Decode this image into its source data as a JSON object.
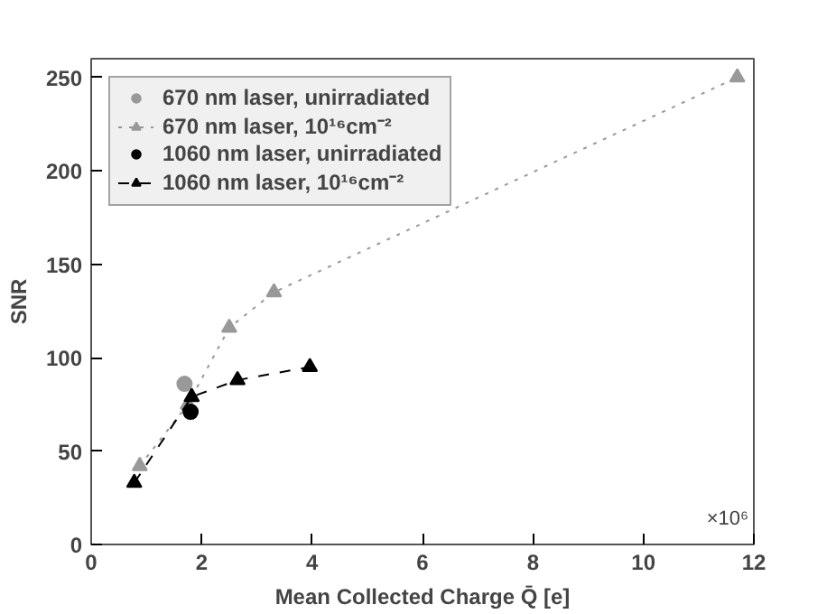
{
  "chart_data": {
    "type": "line",
    "xlabel": "Mean Collected Charge Q̄ [e]",
    "ylabel": "SNR",
    "xlim": [
      0,
      12
    ],
    "ylim": [
      0,
      260
    ],
    "xticks": [
      0,
      2,
      4,
      6,
      8,
      10,
      12
    ],
    "yticks": [
      0,
      50,
      100,
      150,
      200,
      250
    ],
    "annotations": [
      "×10⁶"
    ],
    "grid": false,
    "legend": "top left",
    "series": [
      {
        "name": "670 nm laser, unirradiated",
        "type": "scatter",
        "marker": "circle",
        "color": "#999999",
        "x": [
          1.69
        ],
        "values": [
          86
        ]
      },
      {
        "name": "670 nm laser, 10¹⁶cm⁻²",
        "marker": "triangle",
        "line_style": "dotted",
        "color": "#999999",
        "x": [
          0.88,
          1.75,
          2.5,
          3.31,
          11.7
        ],
        "values": [
          42,
          75,
          116,
          135,
          250
        ]
      },
      {
        "name": "1060 nm laser, unirradiated",
        "type": "scatter",
        "marker": "circle",
        "color": "#000000",
        "x": [
          1.8
        ],
        "values": [
          71
        ]
      },
      {
        "name": "1060 nm laser, 10¹⁶cm⁻²",
        "marker": "triangle",
        "line_style": "dashed",
        "color": "#000000",
        "x": [
          0.78,
          1.82,
          2.65,
          3.96
        ],
        "values": [
          33,
          79,
          88,
          95
        ]
      }
    ]
  }
}
